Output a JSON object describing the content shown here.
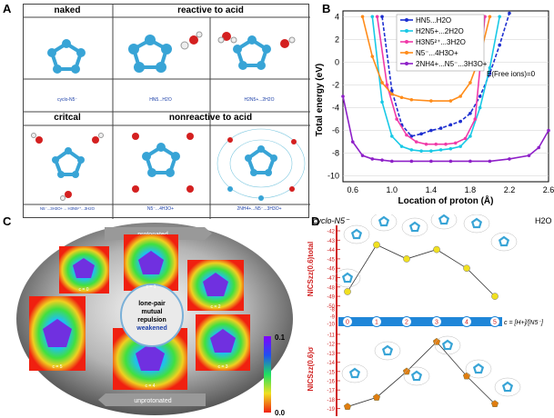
{
  "panels": {
    "a": "A",
    "b": "B",
    "c": "C",
    "d": "D"
  },
  "panel_a": {
    "headers": [
      "naked",
      "reactive to acid",
      "critcal",
      "nonreactive to acid"
    ],
    "captions": [
      "cyclo-N5⁻",
      "HN5...H2O",
      "H2N5+...2H2O",
      "N5⁻...3H3O+→ H3N5²⁺...3H2O",
      "N5⁻...4H3O+",
      "2NH4+...N5⁻...3H3O+"
    ]
  },
  "panel_b": {
    "legend": [
      "HN5...H2O",
      "H2N5+...2H2O",
      "H3N5²⁺...3H2O",
      "N5⁻...4H3O+",
      "2NH4+...N5⁻...3H3O+"
    ],
    "free_ions": "E(Free ions)=0",
    "ylabel": "Total energy (eV)",
    "xlabel": "Location of proton (Å)",
    "xleft": "cyclo-N5⁻",
    "xright": "H2O",
    "xticks": [
      "0.6",
      "1.0",
      "1.4",
      "1.8",
      "2.2",
      "2.6"
    ],
    "yticks": [
      "4",
      "2",
      "0",
      "-2",
      "-4",
      "-6",
      "-8",
      "-10"
    ]
  },
  "panel_c": {
    "top_arrow": "protonated",
    "bottom_arrow": "unprotonated",
    "center": [
      "lone-pair",
      "mutual",
      "repulsion",
      "weakened"
    ],
    "c_labels": [
      "c = 0",
      "c = 1",
      "c = 2",
      "c = 3",
      "c = 4",
      "c = 5"
    ],
    "colorbar": [
      "0.1",
      "0.0"
    ]
  },
  "panel_d": {
    "ylabel_top": "NICSzz(0.6)total",
    "ylabel_bot": "NICSzz(0.6)σ",
    "top_ticks": [
      "-42",
      "-43",
      "-44",
      "-45",
      "-46",
      "-47",
      "-48",
      "-49",
      "-50"
    ],
    "bot_ticks": [
      "-11",
      "-12",
      "-13",
      "-14",
      "-15",
      "-16",
      "-17",
      "-18",
      "-19"
    ],
    "bar_nums": [
      "0",
      "1",
      "2",
      "3",
      "4",
      "5"
    ],
    "bar_ticks": [
      "-8",
      "-9",
      "-10"
    ],
    "bar_formula": "c = [H+]/[N5⁻]"
  },
  "chart_data": [
    {
      "type": "line",
      "title": "",
      "xlabel": "Location of proton (Å)",
      "ylabel": "Total energy (eV)",
      "xlim": [
        0.5,
        2.6
      ],
      "ylim": [
        -10.5,
        4.5
      ],
      "series": [
        {
          "name": "HN5...H2O",
          "color": "#1d2fd0",
          "x": [
            0.9,
            1.0,
            1.1,
            1.2,
            1.3,
            1.4,
            1.5,
            1.6,
            1.7,
            1.8,
            1.9,
            2.0,
            2.1,
            2.2
          ],
          "y": [
            4,
            -2.5,
            -5.5,
            -6.5,
            -6.3,
            -6.0,
            -5.8,
            -5.5,
            -5.2,
            -4.5,
            -3.0,
            -1.0,
            1.5,
            4.3
          ]
        },
        {
          "name": "H2N5+...2H2O",
          "color": "#19c9e6",
          "x": [
            0.8,
            0.9,
            1.0,
            1.1,
            1.2,
            1.3,
            1.4,
            1.5,
            1.6,
            1.7,
            1.8,
            1.9,
            2.0,
            2.1
          ],
          "y": [
            4,
            -3.5,
            -6.5,
            -7.4,
            -7.7,
            -7.8,
            -7.8,
            -7.7,
            -7.6,
            -7.4,
            -6.5,
            -4.0,
            -0.5,
            4.0
          ]
        },
        {
          "name": "H3N5²⁺...3H2O",
          "color": "#f03aa8",
          "x": [
            0.85,
            0.95,
            1.05,
            1.15,
            1.25,
            1.35,
            1.45,
            1.55,
            1.65,
            1.75,
            1.85,
            1.95
          ],
          "y": [
            4,
            -2.0,
            -5.0,
            -6.4,
            -7.0,
            -7.2,
            -7.2,
            -7.2,
            -7.1,
            -6.7,
            -5.0,
            4.0
          ]
        },
        {
          "name": "N5⁻...4H3O+",
          "color": "#ff8c1a",
          "x": [
            0.7,
            0.8,
            0.9,
            1.0,
            1.1,
            1.2,
            1.4,
            1.6,
            1.7,
            1.8,
            1.9,
            2.0
          ],
          "y": [
            4,
            0.5,
            -1.8,
            -2.8,
            -3.1,
            -3.3,
            -3.4,
            -3.4,
            -3.0,
            -1.8,
            0.5,
            4.0
          ]
        },
        {
          "name": "2NH4+...N5⁻...3H3O+",
          "color": "#8e20c8",
          "x": [
            0.5,
            0.6,
            0.7,
            0.8,
            0.9,
            1.0,
            1.2,
            1.4,
            1.6,
            1.8,
            2.0,
            2.2,
            2.4,
            2.5,
            2.6
          ],
          "y": [
            -3.0,
            -7.0,
            -8.2,
            -8.5,
            -8.6,
            -8.7,
            -8.7,
            -8.7,
            -8.7,
            -8.7,
            -8.7,
            -8.5,
            -8.2,
            -7.5,
            -6.0
          ]
        }
      ]
    },
    {
      "type": "line",
      "title": "",
      "xlabel": "c = [H+]/[N5⁻]",
      "series": [
        {
          "name": "NICSzz(0.6)total",
          "color": "#f0e020",
          "x": [
            0,
            1,
            2,
            3,
            4,
            5
          ],
          "y": [
            -48.5,
            -43.5,
            -45.0,
            -44.0,
            -46.0,
            -49.0
          ]
        },
        {
          "name": "NICSzz(0.6)σ",
          "color": "#e07d10",
          "x": [
            0,
            1,
            2,
            3,
            4,
            5
          ],
          "y": [
            -18.8,
            -17.8,
            -15.0,
            -11.8,
            -15.5,
            -18.5
          ]
        }
      ]
    }
  ]
}
